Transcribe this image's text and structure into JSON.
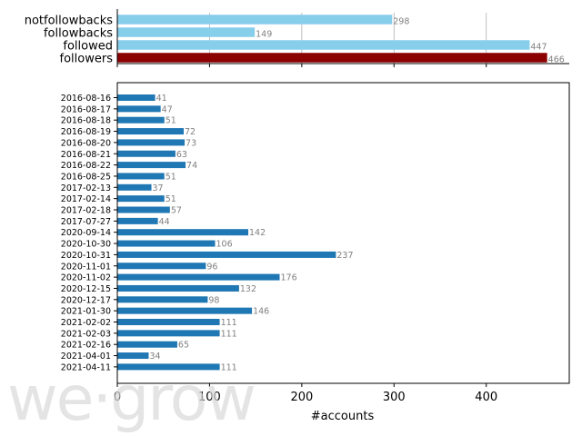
{
  "watermark": "we·grow",
  "colors": {
    "summary_light": "#87ceeb",
    "summary_dark": "#8b0000",
    "daily": "#1f77b4",
    "label": "#808080",
    "grid": "#b0b0b0"
  },
  "chart_data": [
    {
      "type": "bar",
      "orientation": "horizontal",
      "categories": [
        "notfollowbacks",
        "followbacks",
        "followed",
        "followers"
      ],
      "values": [
        298,
        149,
        447,
        466
      ],
      "xlim": [
        0,
        490
      ],
      "grid": "x",
      "value_labels": [
        "298",
        "149",
        "447",
        "466"
      ]
    },
    {
      "type": "bar",
      "orientation": "horizontal",
      "categories": [
        "2016-08-16",
        "2016-08-17",
        "2016-08-18",
        "2016-08-19",
        "2016-08-20",
        "2016-08-21",
        "2016-08-22",
        "2016-08-25",
        "2017-02-13",
        "2017-02-14",
        "2017-02-18",
        "2017-07-27",
        "2020-09-14",
        "2020-10-30",
        "2020-10-31",
        "2020-11-01",
        "2020-11-02",
        "2020-12-15",
        "2020-12-17",
        "2021-01-30",
        "2021-02-02",
        "2021-02-03",
        "2021-02-16",
        "2021-04-01",
        "2021-04-11"
      ],
      "values": [
        41,
        47,
        51,
        72,
        73,
        63,
        74,
        51,
        37,
        51,
        57,
        44,
        142,
        106,
        237,
        96,
        176,
        132,
        98,
        146,
        111,
        111,
        65,
        34,
        111
      ],
      "value_labels": [
        "41",
        "47",
        "51",
        "72",
        "73",
        "63",
        "74",
        "51",
        "37",
        "51",
        "57",
        "44",
        "142",
        "106",
        "237",
        "96",
        "176",
        "132",
        "98",
        "146",
        "111",
        "111",
        "65",
        "34",
        "111"
      ],
      "xlim": [
        0,
        490
      ],
      "xticks": [
        0,
        100,
        200,
        300,
        400
      ],
      "xtick_labels": [
        "0",
        "100",
        "200",
        "300",
        "400"
      ],
      "xlabel": "#accounts"
    }
  ]
}
